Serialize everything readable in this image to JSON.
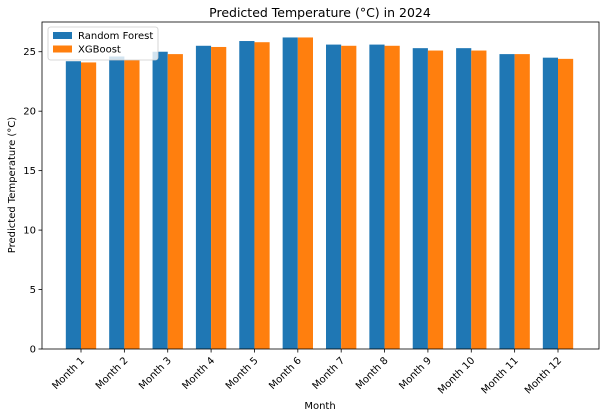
{
  "chart_data": {
    "type": "bar",
    "title": "Predicted Temperature (°C) in 2024",
    "xlabel": "Month",
    "ylabel": "Predicted Temperature (°C)",
    "categories": [
      "Month 1",
      "Month 2",
      "Month 3",
      "Month 4",
      "Month 5",
      "Month 6",
      "Month 7",
      "Month 8",
      "Month 9",
      "Month 10",
      "Month 11",
      "Month 12"
    ],
    "series": [
      {
        "name": "Random Forest",
        "color": "#1f77b4",
        "values": [
          24.2,
          24.6,
          25.0,
          25.5,
          25.9,
          26.2,
          25.6,
          25.6,
          25.3,
          25.3,
          24.8,
          24.5
        ]
      },
      {
        "name": "XGBoost",
        "color": "#ff7f0e",
        "values": [
          24.1,
          24.3,
          24.8,
          25.4,
          25.8,
          26.2,
          25.5,
          25.5,
          25.1,
          25.1,
          24.8,
          24.4
        ]
      }
    ],
    "ylim": [
      0,
      27.5
    ],
    "yticks": [
      0,
      5,
      10,
      15,
      20,
      25
    ],
    "grid": false,
    "legend_position": "top-left"
  }
}
